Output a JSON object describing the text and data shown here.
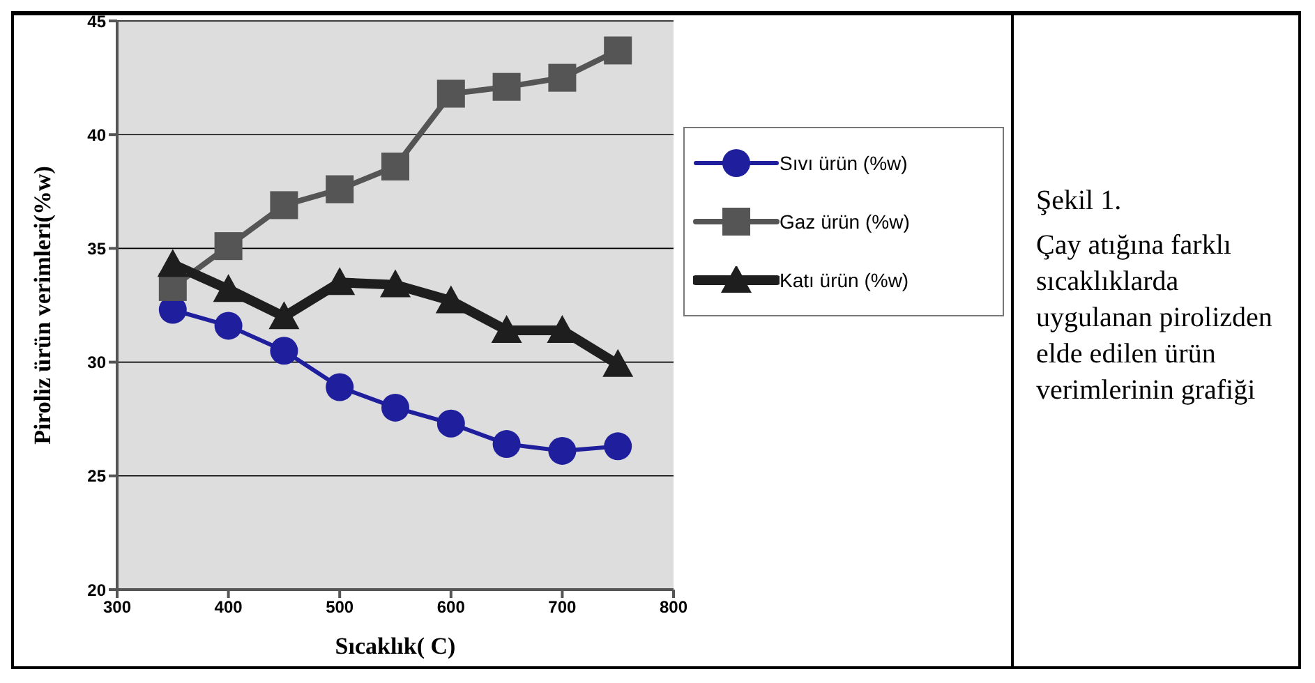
{
  "chart_data": {
    "type": "line",
    "xlabel": "Sıcaklık( C)",
    "ylabel": "Piroliz ürün verimleri(%w)",
    "x": [
      350,
      400,
      450,
      500,
      550,
      600,
      650,
      700,
      750
    ],
    "series": [
      {
        "name": "Sıvı ürün (%w)",
        "color": "#1f1f9e",
        "marker": "circle",
        "values": [
          32.3,
          31.6,
          30.5,
          28.9,
          28.0,
          27.3,
          26.4,
          26.1,
          26.3
        ]
      },
      {
        "name": "Gaz ürün (%w)",
        "color": "#555555",
        "marker": "square",
        "values": [
          33.3,
          35.1,
          36.9,
          37.6,
          38.6,
          41.8,
          42.1,
          42.5,
          43.7
        ]
      },
      {
        "name": "Katı ürün (%w)",
        "color": "#1e1e1e",
        "marker": "triangle",
        "values": [
          34.3,
          33.2,
          32.0,
          33.5,
          33.4,
          32.7,
          31.4,
          31.4,
          29.9
        ]
      }
    ],
    "xlim": [
      300,
      800
    ],
    "xticks": [
      300,
      400,
      500,
      600,
      700,
      800
    ],
    "ylim": [
      20,
      45
    ],
    "yticks": [
      20,
      25,
      30,
      35,
      40,
      45
    ],
    "grid": "y",
    "legend": "top right",
    "line_style": "solid",
    "annotations": [
      "Şekil 1.",
      "Çay atığına farklı sıcaklıklarda uygulanan pirolizden elde edilen ürün verimlerinin grafiği"
    ]
  }
}
